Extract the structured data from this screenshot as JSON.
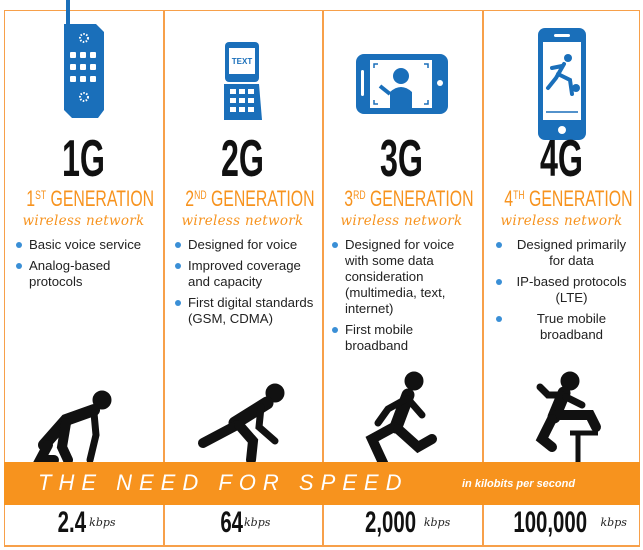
{
  "colors": {
    "accent": "#f7931e",
    "icon_blue": "#1a6fba",
    "bullet": "#3a8fd6",
    "text": "#111111"
  },
  "generations": [
    {
      "label": "1G",
      "ordinal": "1",
      "suffix": "ST",
      "title": "GENERATION",
      "subtitle": "wireless network",
      "icon": "brick-phone-icon",
      "runner": "runner-crouching-start-icon",
      "features": [
        "Basic voice service",
        "Analog-based protocols"
      ],
      "speed": "2.4",
      "unit": "kbps"
    },
    {
      "label": "2G",
      "ordinal": "2",
      "suffix": "ND",
      "title": "GENERATION",
      "subtitle": "wireless network",
      "icon": "flip-phone-text-icon",
      "screen_text": "TEXT",
      "runner": "runner-starting-icon",
      "features": [
        "Designed for voice",
        "Improved coverage and capacity",
        "First digital standards (GSM, CDMA)"
      ],
      "speed": "64",
      "unit": "kbps"
    },
    {
      "label": "3G",
      "ordinal": "3",
      "suffix": "RD",
      "title": "GENERATION",
      "subtitle": "wireless network",
      "icon": "smartphone-video-call-icon",
      "runner": "runner-sprinting-icon",
      "features": [
        "Designed for voice with some data consideration (multimedia, text, internet)",
        "First mobile broadband"
      ],
      "speed": "2,000",
      "unit": "kbps"
    },
    {
      "label": "4G",
      "ordinal": "4",
      "suffix": "TH",
      "title": "GENERATION",
      "subtitle": "wireless network",
      "icon": "smartphone-video-sports-icon",
      "runner": "runner-hurdling-icon",
      "features": [
        "Designed primarily for data",
        "IP-based protocols (LTE)",
        "True mobile broadband"
      ],
      "speed": "100,000",
      "unit": "kbps"
    }
  ],
  "band": {
    "title": "THE NEED FOR SPEED",
    "note": "in kilobits per second"
  }
}
